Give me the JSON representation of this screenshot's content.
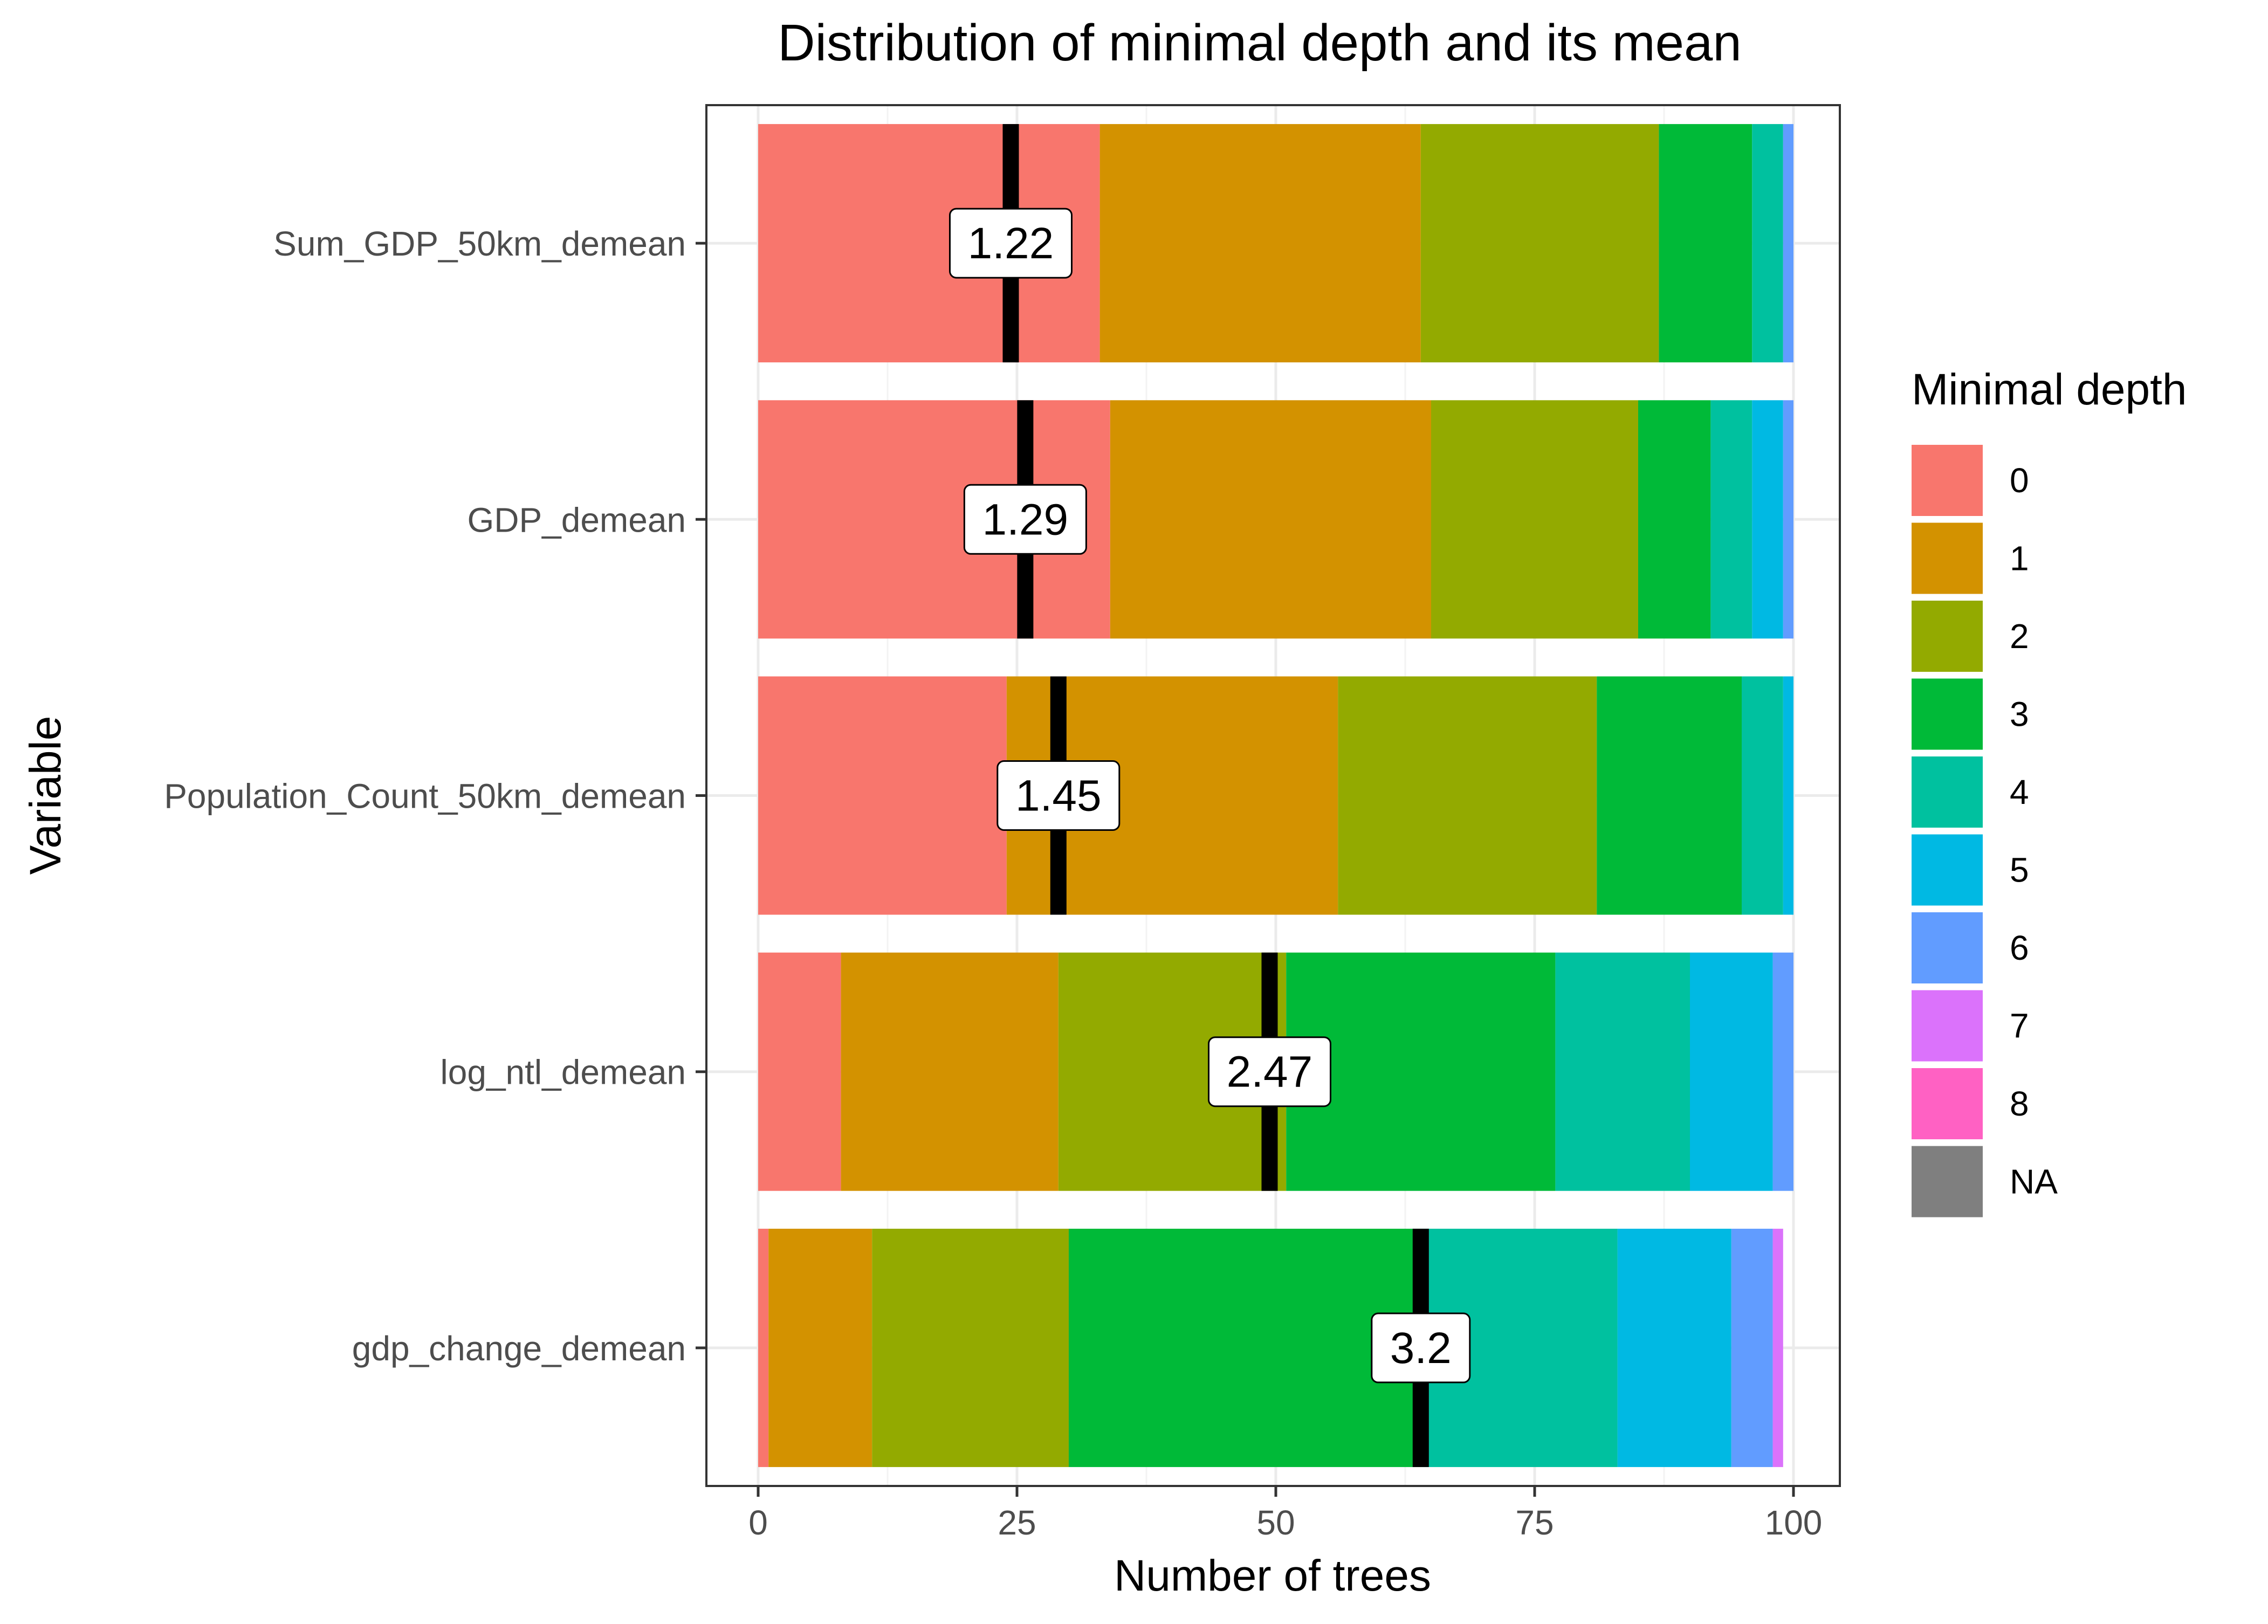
{
  "chart_data": {
    "type": "bar",
    "orientation": "horizontal",
    "stacked": true,
    "title": "Distribution of minimal depth and its mean",
    "xlabel": "Number of trees",
    "ylabel": "Variable",
    "xlim": [
      0,
      100
    ],
    "xticks": [
      0,
      25,
      50,
      75,
      100
    ],
    "xtick_labels": [
      "0",
      "25",
      "50",
      "75",
      "100"
    ],
    "grid": true,
    "legend": {
      "title": "Minimal depth",
      "position": "right",
      "labels": [
        "0",
        "1",
        "2",
        "3",
        "4",
        "5",
        "6",
        "7",
        "8",
        "NA"
      ],
      "colors": [
        "#F8766D",
        "#D39200",
        "#93AA00",
        "#00BA38",
        "#00C19F",
        "#00B9E3",
        "#619CFF",
        "#DB72FB",
        "#FF61C3",
        "#7F7F7F"
      ]
    },
    "categories": [
      "Sum_GDP_50km_demean",
      "GDP_demean",
      "Population_Count_50km_demean",
      "log_ntl_demean",
      "gdp_change_demean"
    ],
    "series": [
      {
        "name": "0",
        "values": [
          33,
          34,
          24,
          8,
          1
        ]
      },
      {
        "name": "1",
        "values": [
          31,
          31,
          32,
          21,
          10
        ]
      },
      {
        "name": "2",
        "values": [
          23,
          20,
          25,
          22,
          19
        ]
      },
      {
        "name": "3",
        "values": [
          9,
          7,
          14,
          26,
          34
        ]
      },
      {
        "name": "4",
        "values": [
          3,
          4,
          4,
          13,
          19
        ]
      },
      {
        "name": "5",
        "values": [
          0,
          3,
          1,
          8,
          11
        ]
      },
      {
        "name": "6",
        "values": [
          1,
          1,
          0,
          2,
          4
        ]
      },
      {
        "name": "7",
        "values": [
          0,
          0,
          0,
          0,
          1
        ]
      },
      {
        "name": "8",
        "values": [
          0,
          0,
          0,
          0,
          0
        ]
      },
      {
        "name": "NA",
        "values": [
          0,
          0,
          0,
          0,
          0
        ]
      }
    ],
    "mean_minimal_depth": {
      "values": [
        1.22,
        1.29,
        1.45,
        2.47,
        3.2
      ],
      "labels": [
        "1.22",
        "1.29",
        "1.45",
        "2.47",
        "3.2"
      ]
    }
  }
}
